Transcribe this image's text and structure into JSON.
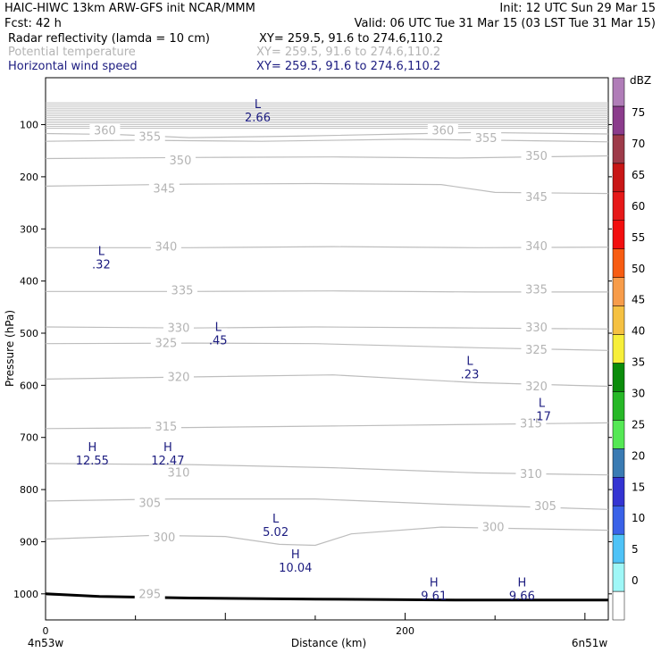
{
  "header": {
    "model": "HAIC-HIWC 13km ARW-GFS init   NCAR/MMM",
    "init": "Init: 12 UTC Sun 29 Mar 15",
    "fcst": "Fcst:    42 h",
    "valid": "Valid: 06 UTC Tue 31 Mar 15 (03 LST Tue 31 Mar 15)",
    "fields": [
      {
        "name": "Radar reflectivity (lamda = 10 cm)",
        "xy": "XY= 259.5, 91.6 to 274.6,110.2",
        "color": "#000000"
      },
      {
        "name": "Potential temperature",
        "xy": "XY= 259.5, 91.6 to 274.6,110.2",
        "color": "#b4b4b4"
      },
      {
        "name": "Horizontal wind speed",
        "xy": "XY= 259.5, 91.6 to 274.6,110.2",
        "color": "#1c1c80"
      }
    ]
  },
  "chart_data": {
    "type": "cross-section",
    "xlabel": "Distance (km)",
    "ylabel": "Pressure (hPa)",
    "x_start_label": "4n53w",
    "x_end_label": "6n51w",
    "x_ticks": [
      "0",
      "200"
    ],
    "xlim": [
      0,
      313
    ],
    "y_ticks": [
      "100",
      "200",
      "300",
      "400",
      "500",
      "600",
      "700",
      "800",
      "900",
      "1000"
    ],
    "ylim": [
      10,
      1050
    ],
    "colorbar": {
      "unit": "dBZ",
      "levels": [
        "0",
        "5",
        "10",
        "15",
        "20",
        "25",
        "30",
        "35",
        "40",
        "45",
        "50",
        "55",
        "60",
        "65",
        "70",
        "75"
      ],
      "colors": [
        "#ffffff",
        "#9ff7f7",
        "#4fc3f7",
        "#3a62e8",
        "#3434d2",
        "#3a7bb3",
        "#55e855",
        "#27b827",
        "#0a8c0a",
        "#f7ef3a",
        "#f5c142",
        "#f79c4a",
        "#f75c12",
        "#f20f0f",
        "#e61919",
        "#c81717",
        "#9e3b4a",
        "#8b3c8c",
        "#b07db8"
      ]
    },
    "theta_labels": [
      {
        "text": "360",
        "x": 33,
        "p": 115
      },
      {
        "text": "355",
        "x": 58,
        "p": 127
      },
      {
        "text": "350",
        "x": 75,
        "p": 173
      },
      {
        "text": "345",
        "x": 66,
        "p": 227
      },
      {
        "text": "340",
        "x": 67,
        "p": 338
      },
      {
        "text": "335",
        "x": 76,
        "p": 422
      },
      {
        "text": "330",
        "x": 74,
        "p": 494
      },
      {
        "text": "325",
        "x": 67,
        "p": 523
      },
      {
        "text": "320",
        "x": 74,
        "p": 588
      },
      {
        "text": "315",
        "x": 67,
        "p": 683
      },
      {
        "text": "310",
        "x": 74,
        "p": 772
      },
      {
        "text": "305",
        "x": 58,
        "p": 830
      },
      {
        "text": "300",
        "x": 66,
        "p": 896
      },
      {
        "text": "295",
        "x": 58,
        "p": 1005
      },
      {
        "text": "360",
        "x": 221,
        "p": 115
      },
      {
        "text": "355",
        "x": 245,
        "p": 130
      },
      {
        "text": "350",
        "x": 273,
        "p": 164
      },
      {
        "text": "345",
        "x": 273,
        "p": 243
      },
      {
        "text": "340",
        "x": 273,
        "p": 337
      },
      {
        "text": "335",
        "x": 273,
        "p": 420
      },
      {
        "text": "330",
        "x": 273,
        "p": 493
      },
      {
        "text": "325",
        "x": 273,
        "p": 536
      },
      {
        "text": "320",
        "x": 273,
        "p": 606
      },
      {
        "text": "315",
        "x": 270,
        "p": 677
      },
      {
        "text": "310",
        "x": 270,
        "p": 774
      },
      {
        "text": "305",
        "x": 278,
        "p": 836
      },
      {
        "text": "300",
        "x": 249,
        "p": 876
      }
    ],
    "wind_extrema": [
      {
        "type": "L",
        "value": "2.66",
        "x": 118,
        "p": 68
      },
      {
        "type": "L",
        "value": ".32",
        "x": 31,
        "p": 350
      },
      {
        "type": "L",
        "value": ".45",
        "x": 96,
        "p": 496
      },
      {
        "type": "L",
        "value": ".23",
        "x": 236,
        "p": 561
      },
      {
        "type": "L",
        "value": ".17",
        "x": 276,
        "p": 641
      },
      {
        "type": "H",
        "value": "12.55",
        "x": 26,
        "p": 726
      },
      {
        "type": "H",
        "value": "12.47",
        "x": 68,
        "p": 726
      },
      {
        "type": "L",
        "value": "5.02",
        "x": 128,
        "p": 863
      },
      {
        "type": "H",
        "value": "10.04",
        "x": 139,
        "p": 932
      },
      {
        "type": "H",
        "value": "9.61",
        "x": 216,
        "p": 986
      },
      {
        "type": "H",
        "value": "9.66",
        "x": 265,
        "p": 986
      }
    ]
  }
}
